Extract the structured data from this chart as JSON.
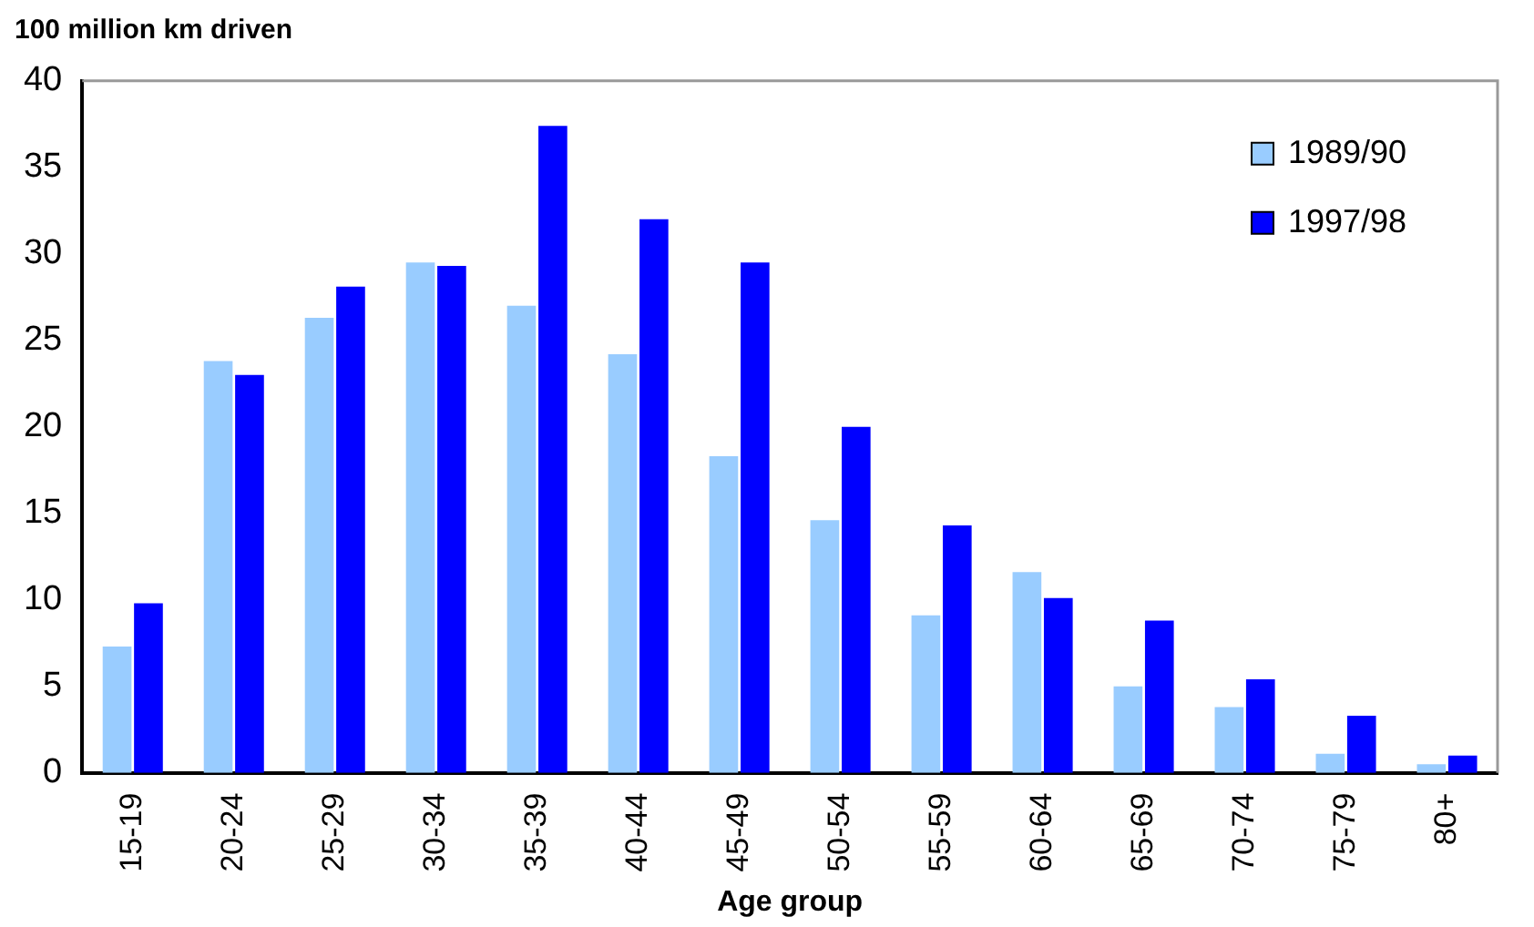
{
  "chart_data": {
    "type": "bar",
    "ylabel": "100 million km driven",
    "xlabel": "Age group",
    "categories": [
      "15-19",
      "20-24",
      "25-29",
      "30-34",
      "35-39",
      "40-44",
      "45-49",
      "50-54",
      "55-59",
      "60-64",
      "65-69",
      "70-74",
      "75-79",
      "80+"
    ],
    "series": [
      {
        "name": "1989/90",
        "color": "#99ccff",
        "values": [
          7.3,
          23.8,
          26.3,
          29.5,
          27.0,
          24.2,
          18.3,
          14.6,
          9.1,
          11.6,
          5.0,
          3.8,
          1.1,
          0.5
        ]
      },
      {
        "name": "1997/98",
        "color": "#0000ff",
        "values": [
          9.8,
          23.0,
          28.1,
          29.3,
          37.4,
          32.0,
          29.5,
          20.0,
          14.3,
          10.1,
          8.8,
          5.4,
          3.3,
          1.0
        ]
      }
    ],
    "ylim": [
      0,
      40
    ],
    "yticks": [
      0,
      5,
      10,
      15,
      20,
      25,
      30,
      35,
      40
    ],
    "grid": false,
    "legend": "top right"
  }
}
